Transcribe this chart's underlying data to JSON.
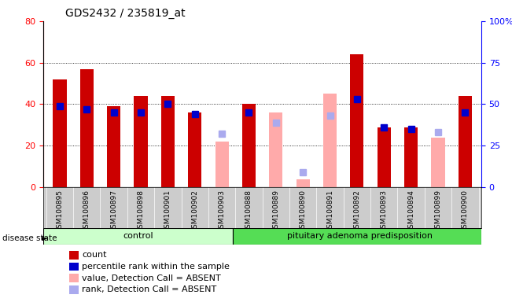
{
  "title": "GDS2432 / 235819_at",
  "samples": [
    "GSM100895",
    "GSM100896",
    "GSM100897",
    "GSM100898",
    "GSM100901",
    "GSM100902",
    "GSM100903",
    "GSM100888",
    "GSM100889",
    "GSM100890",
    "GSM100891",
    "GSM100892",
    "GSM100893",
    "GSM100894",
    "GSM100899",
    "GSM100900"
  ],
  "n_control": 7,
  "n_disease": 9,
  "count_values": [
    52,
    57,
    39,
    44,
    44,
    36,
    null,
    40,
    null,
    null,
    null,
    64,
    29,
    29,
    null,
    44
  ],
  "percentile_values": [
    49,
    47,
    45,
    45,
    50,
    44,
    null,
    45,
    null,
    null,
    null,
    53,
    36,
    35,
    null,
    45
  ],
  "absent_value_values": [
    null,
    null,
    null,
    null,
    null,
    null,
    22,
    null,
    36,
    4,
    45,
    null,
    null,
    null,
    24,
    null
  ],
  "absent_rank_values": [
    null,
    null,
    null,
    null,
    null,
    null,
    32,
    null,
    39,
    9,
    43,
    null,
    null,
    null,
    33,
    null
  ],
  "left_ylim": [
    0,
    80
  ],
  "right_ylim": [
    0,
    100
  ],
  "left_yticks": [
    0,
    20,
    40,
    60,
    80
  ],
  "right_yticks": [
    0,
    25,
    50,
    75,
    100
  ],
  "count_color": "#cc0000",
  "percentile_color": "#0000cc",
  "absent_value_color": "#ffaaaa",
  "absent_rank_color": "#aaaaee",
  "control_bg": "#ccffcc",
  "disease_bg": "#55dd55",
  "xticklabel_bg": "#cccccc",
  "title_fontsize": 10,
  "xticklabel_fontsize": 6.5,
  "ytick_fontsize": 8,
  "legend_fontsize": 8,
  "bar_width": 0.5,
  "marker_size": 6
}
